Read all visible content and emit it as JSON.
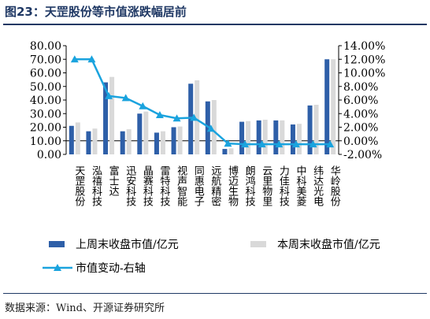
{
  "title": "图23：天罡股份等市值涨跌幅居前",
  "source": "数据来源：Wind、开源证券研究所",
  "colors": {
    "bar_prev": "#2e5fa8",
    "bar_curr": "#d9d9d9",
    "line": "#1aa3de",
    "axis": "#000000"
  },
  "chart_data": {
    "type": "bar",
    "categories": [
      "天罡股份",
      "泓禧科技",
      "富士达",
      "迅安科技",
      "晶赛科技",
      "雷特科技",
      "视声智能",
      "同惠电子",
      "远航精密",
      "博迈生物",
      "朗鸿科技",
      "云里物里",
      "力佳科技",
      "中科美菱",
      "纬达光电",
      "华岭股份"
    ],
    "series": [
      {
        "name": "上周末收盘市值/亿元",
        "type": "bar",
        "axis": "left",
        "values": [
          21,
          17,
          53,
          17,
          30,
          16,
          20,
          52,
          39,
          4,
          24,
          25,
          25,
          22,
          36,
          70
        ]
      },
      {
        "name": "本周末收盘市值/亿元",
        "type": "bar",
        "axis": "left",
        "values": [
          23.5,
          19,
          57,
          18.5,
          31.5,
          17,
          20.5,
          54.5,
          40,
          4.5,
          24.5,
          25.5,
          25,
          22.5,
          36.5,
          70
        ]
      },
      {
        "name": "市值变动-右轴",
        "type": "line",
        "axis": "right",
        "values": [
          12.0,
          12.0,
          6.6,
          6.3,
          5.1,
          3.8,
          3.3,
          3.4,
          1.8,
          -0.4,
          -0.5,
          -0.5,
          -0.5,
          -0.5,
          -0.5,
          -0.5
        ]
      }
    ],
    "y_left": {
      "ylim": [
        0,
        80
      ],
      "ticks": [
        "0.00",
        "10.00",
        "20.00",
        "30.00",
        "40.00",
        "50.00",
        "60.00",
        "70.00",
        "80.00"
      ]
    },
    "y_right": {
      "ylim": [
        -2,
        14
      ],
      "ticks": [
        "-2.00%",
        "0.00%",
        "2.00%",
        "4.00%",
        "6.00%",
        "8.00%",
        "10.00%",
        "12.00%",
        "14.00%"
      ]
    },
    "legend_position": "bottom"
  }
}
